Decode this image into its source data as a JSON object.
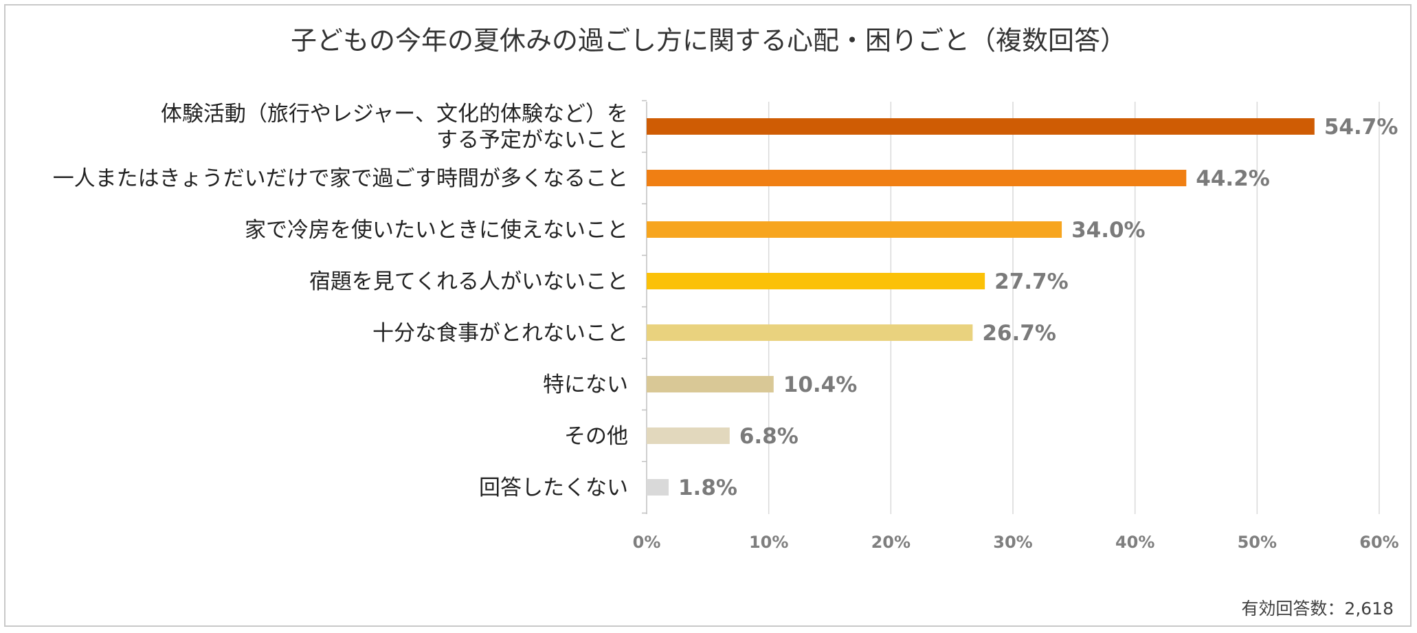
{
  "chart_data": {
    "type": "bar",
    "orientation": "horizontal",
    "title": "子どもの今年の夏休みの過ごし方に関する心配・困りごと（複数回答）",
    "categories": [
      [
        "体験活動（旅行やレジャー、文化的体験など）を",
        "する予定がないこと"
      ],
      [
        "一人またはきょうだいだけで家で過ごす時間が多くなること"
      ],
      [
        "家で冷房を使いたいときに使えないこと"
      ],
      [
        "宿題を見てくれる人がいないこと"
      ],
      [
        "十分な食事がとれないこと"
      ],
      [
        "特にない"
      ],
      [
        "その他"
      ],
      [
        "回答したくない"
      ]
    ],
    "values": [
      54.7,
      44.2,
      34.0,
      27.7,
      26.7,
      10.4,
      6.8,
      1.8
    ],
    "value_labels": [
      "54.7%",
      "44.2%",
      "34.0%",
      "27.7%",
      "26.7%",
      "10.4%",
      "6.8%",
      "1.8%"
    ],
    "bar_colors": [
      "#cf5c04",
      "#f07f13",
      "#f7a51e",
      "#fbc108",
      "#e9d27e",
      "#d9c896",
      "#e2d8bd",
      "#d9d9d9"
    ],
    "xlim": [
      0,
      60
    ],
    "xticks": [
      0,
      10,
      20,
      30,
      40,
      50,
      60
    ],
    "xtick_labels": [
      "0%",
      "10%",
      "20%",
      "30%",
      "40%",
      "50%",
      "60%"
    ],
    "grid": true,
    "xlabel": "",
    "ylabel": ""
  },
  "note": "有効回答数：2,618"
}
